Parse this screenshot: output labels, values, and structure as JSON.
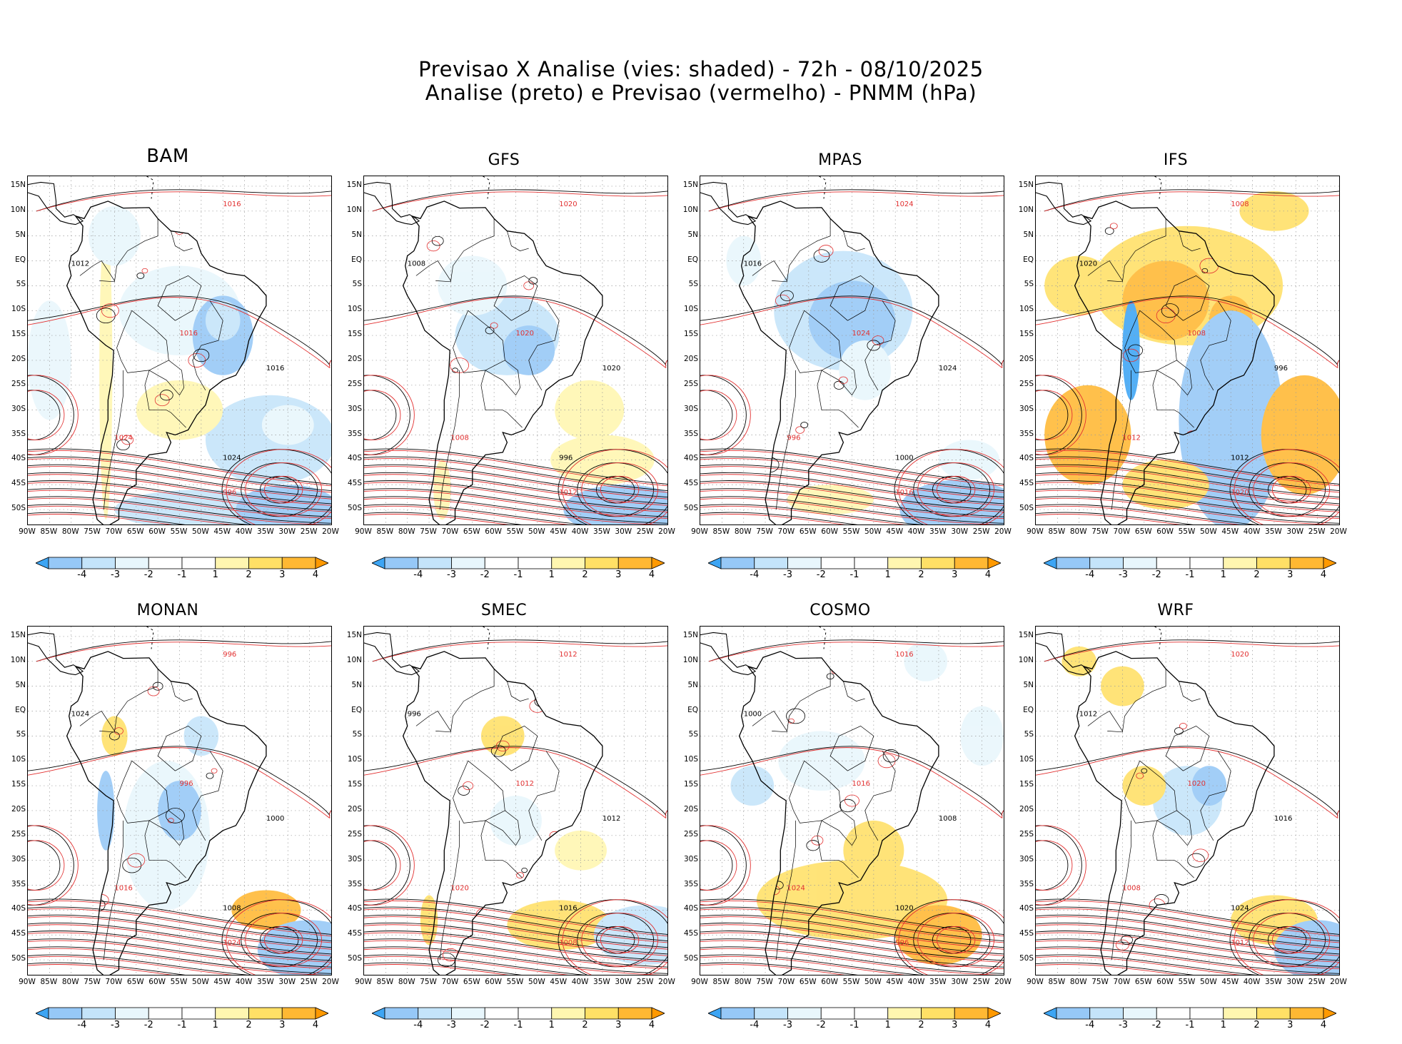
{
  "header": {
    "line1": "Previsao X Analise (vies: shaded) - 72h - 08/10/2025",
    "line2": "Analise (preto) e Previsao (vermelho) - PNMM (hPa)"
  },
  "lat_labels": [
    "15N",
    "10N",
    "5N",
    "EQ",
    "5S",
    "10S",
    "15S",
    "20S",
    "25S",
    "30S",
    "35S",
    "40S",
    "45S",
    "50S"
  ],
  "lon_labels": [
    "90W",
    "85W",
    "80W",
    "75W",
    "70W",
    "65W",
    "60W",
    "55W",
    "50W",
    "45W",
    "40W",
    "35W",
    "30W",
    "25W",
    "20W"
  ],
  "colorbar": {
    "labels": [
      "-4",
      "-3",
      "-2",
      "-1",
      "1",
      "2",
      "3",
      "4"
    ],
    "colors": [
      "#3da5f4",
      "#96c8f7",
      "#c4e4fa",
      "#e8f6fc",
      "#ffffff",
      "#fff6b0",
      "#ffe066",
      "#ffb833",
      "#ff9900"
    ]
  },
  "colors": {
    "analysis": "#000000",
    "forecast": "#e23030",
    "coast": "#000000"
  },
  "panels": [
    {
      "model": "BAM",
      "big": true
    },
    {
      "model": "GFS"
    },
    {
      "model": "MPAS"
    },
    {
      "model": "IFS"
    },
    {
      "model": "MONAN"
    },
    {
      "model": "SMEC"
    },
    {
      "model": "COSMO"
    },
    {
      "model": "WRF"
    }
  ],
  "isobar_labels": {
    "analysis": [
      "1012",
      "1008",
      "1016",
      "1020",
      "1024",
      "996",
      "1000"
    ],
    "forecast": [
      "1012",
      "1016",
      "1020",
      "1024",
      "1008",
      "996"
    ]
  }
}
